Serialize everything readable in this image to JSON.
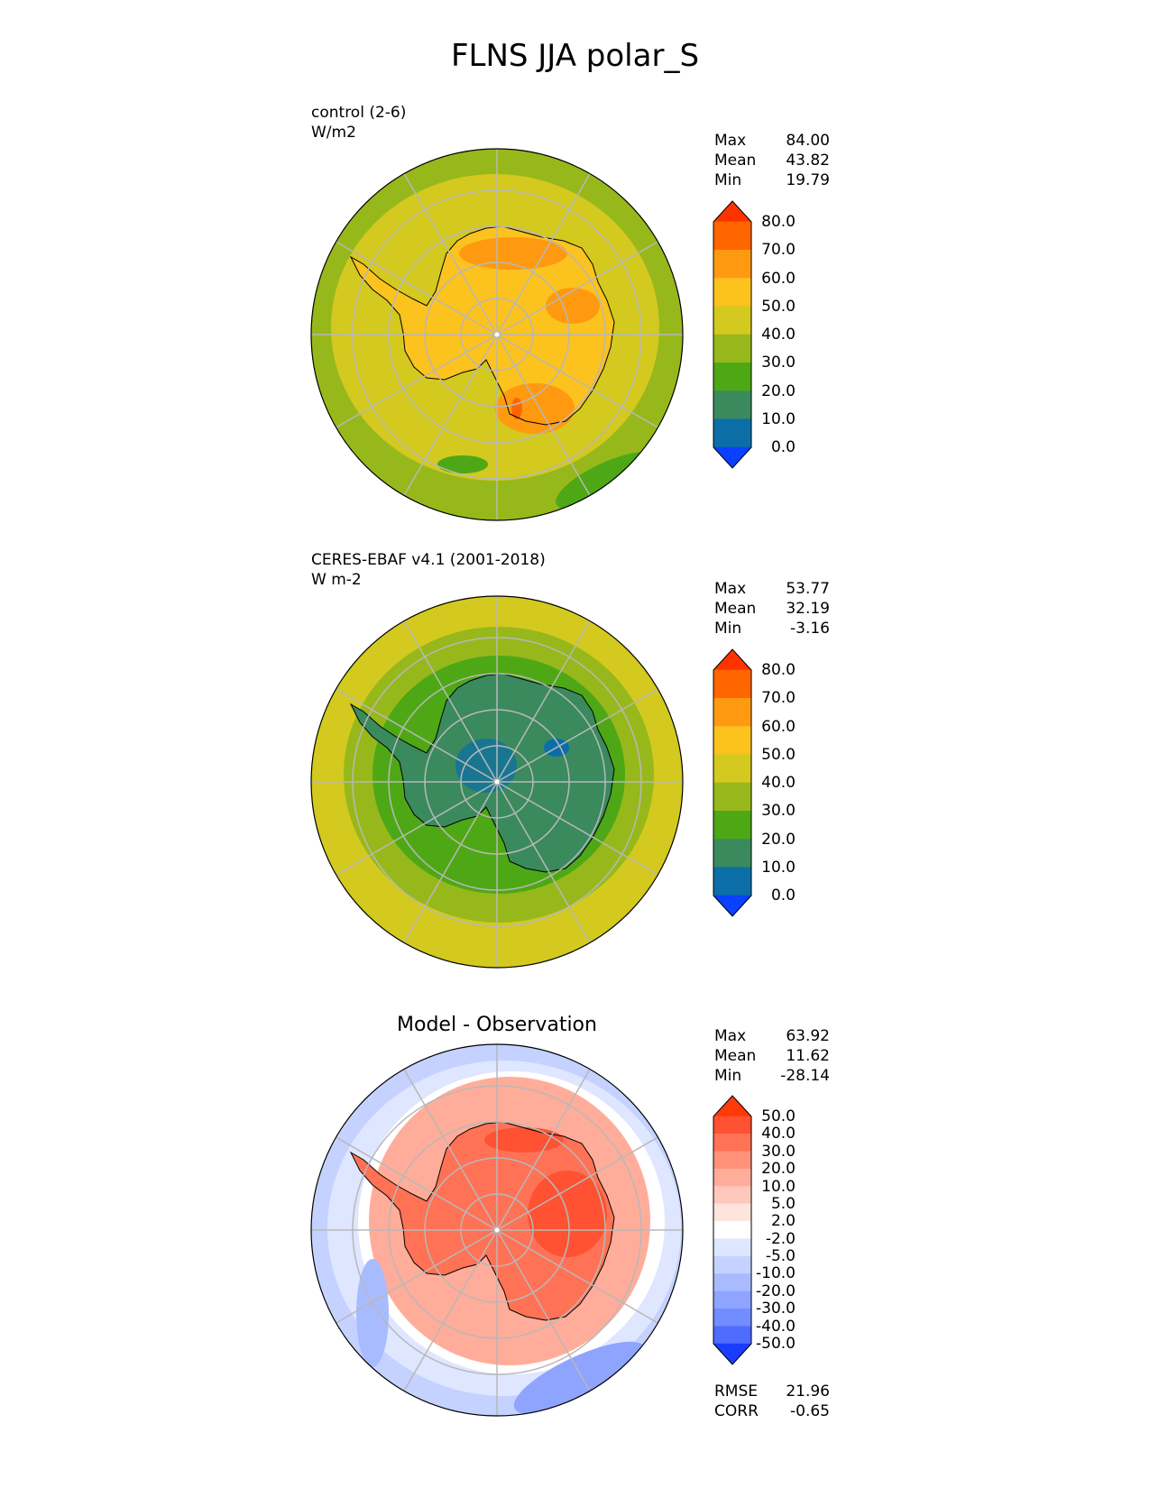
{
  "title": "FLNS JJA polar_S",
  "panels": [
    {
      "id": "model",
      "subtitle": [
        "control (2-6)",
        "W/m2"
      ],
      "stats": [
        {
          "label": "Max",
          "value": "84.00"
        },
        {
          "label": "Mean",
          "value": "43.82"
        },
        {
          "label": "Min",
          "value": "19.79"
        }
      ]
    },
    {
      "id": "obs",
      "subtitle": [
        "CERES-EBAF v4.1 (2001-2018)",
        "W m-2"
      ],
      "stats": [
        {
          "label": "Max",
          "value": "53.77"
        },
        {
          "label": "Mean",
          "value": "32.19"
        },
        {
          "label": "Min",
          "value": "-3.16"
        }
      ]
    },
    {
      "id": "diff",
      "title": "Model - Observation",
      "stats": [
        {
          "label": "Max",
          "value": "63.92"
        },
        {
          "label": "Mean",
          "value": "11.62"
        },
        {
          "label": "Min",
          "value": "-28.14"
        }
      ],
      "metrics": [
        {
          "label": "RMSE",
          "value": "21.96"
        },
        {
          "label": "CORR",
          "value": "-0.65"
        }
      ]
    }
  ],
  "colorbar_main": {
    "levels": [
      "80.0",
      "70.0",
      "60.0",
      "50.0",
      "40.0",
      "30.0",
      "20.0",
      "10.0",
      "0.0"
    ],
    "colors": [
      "#ff3300",
      "#ff6600",
      "#ff9a10",
      "#fcc21e",
      "#d3c91f",
      "#97b81b",
      "#4ea815",
      "#3a8a5e",
      "#0b6ea6",
      "#0a40ff"
    ]
  },
  "colorbar_diff": {
    "levels": [
      "50.0",
      "40.0",
      "30.0",
      "20.0",
      "10.0",
      "5.0",
      "2.0",
      "-2.0",
      "-5.0",
      "-10.0",
      "-20.0",
      "-30.0",
      "-40.0",
      "-50.0"
    ],
    "colors": [
      "#ff3a0a",
      "#ff5233",
      "#ff7255",
      "#ff9278",
      "#ffad9a",
      "#ffc8bc",
      "#ffe4de",
      "#ffffff",
      "#dfe6ff",
      "#c5d2ff",
      "#a9bbff",
      "#8ea4ff",
      "#728dff",
      "#4f6cff",
      "#1a3cff"
    ]
  },
  "map_colors": {
    "model": {
      "outer": "#97b81b",
      "ring": "#d3c91f",
      "inner": "#fcc21e",
      "hot": "#ff9a10",
      "hotter": "#ff6600"
    },
    "obs": {
      "outer": "#d3c91f",
      "ring": "#97b81b",
      "inner": "#4ea815",
      "core": "#3a8a5e",
      "cold": "#0b6ea6"
    },
    "diff": {
      "outer": "#c5d2ff",
      "ring": "#ffffff",
      "mid": "#ffad9a",
      "inner": "#ff7255",
      "hot": "#ff5233"
    }
  }
}
